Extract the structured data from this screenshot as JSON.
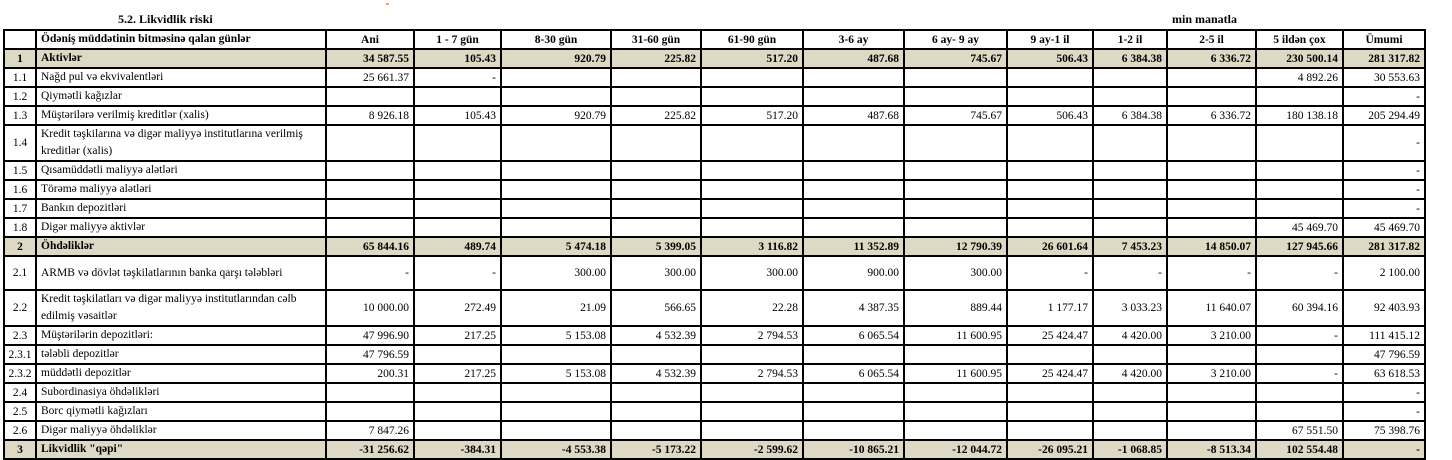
{
  "title": "5.2. Likvidlik riski",
  "unit": "min manatla",
  "columns": [
    "",
    "Ödəniş müddətinin bitməsinə qalan günlər",
    "Ani",
    "1 - 7 gün",
    "8-30 gün",
    "31-60 gün",
    "61-90 gün",
    "3-6 ay",
    "6 ay- 9 ay",
    "9 ay-1 il",
    "1-2 il",
    "2-5 il",
    "5 ildən çox",
    "Ümumi"
  ],
  "colors": {
    "summary_row_bg": "#ddd9c4",
    "border": "#000000"
  },
  "rows": [
    {
      "idx": "1",
      "label": "Aktivlər",
      "summary": true,
      "values": [
        "34 587.55",
        "105.43",
        "920.79",
        "225.82",
        "517.20",
        "487.68",
        "745.67",
        "506.43",
        "6 384.38",
        "6 336.72",
        "230 500.14",
        "281 317.82"
      ]
    },
    {
      "idx": "1.1",
      "label": "Nağd pul və ekvivalentləri",
      "values": [
        "25 661.37",
        "-",
        "",
        "",
        "",
        "",
        "",
        "",
        "",
        "",
        "4 892.26",
        "30 553.63"
      ]
    },
    {
      "idx": "1.2",
      "label": "Qiymətli kağızlar",
      "values": [
        "",
        "",
        "",
        "",
        "",
        "",
        "",
        "",
        "",
        "",
        "",
        "-"
      ]
    },
    {
      "idx": "1.3",
      "label": "Müştərilərə verilmiş kreditlər (xalis)",
      "values": [
        "8 926.18",
        "105.43",
        "920.79",
        "225.82",
        "517.20",
        "487.68",
        "745.67",
        "506.43",
        "6 384.38",
        "6 336.72",
        "180 138.18",
        "205 294.49"
      ]
    },
    {
      "idx": "1.4",
      "label": "Kredit təşkilarına və digər maliyyə institutlarına verilmiş kreditlər (xalis)",
      "tall": true,
      "values": [
        "",
        "",
        "",
        "",
        "",
        "",
        "",
        "",
        "",
        "",
        "",
        "-"
      ]
    },
    {
      "idx": "1.5",
      "label": "Qısamüddətli maliyyə alətləri",
      "values": [
        "",
        "",
        "",
        "",
        "",
        "",
        "",
        "",
        "",
        "",
        "",
        "-"
      ]
    },
    {
      "idx": "1.6",
      "label": "Törəmə maliyyə alətləri",
      "values": [
        "",
        "",
        "",
        "",
        "",
        "",
        "",
        "",
        "",
        "",
        "",
        "-"
      ]
    },
    {
      "idx": "1.7",
      "label": "Bankın depozitləri",
      "values": [
        "",
        "",
        "",
        "",
        "",
        "",
        "",
        "",
        "",
        "",
        "",
        "-"
      ]
    },
    {
      "idx": "1.8",
      "label": "Digər maliyyə aktivlər",
      "values": [
        "",
        "",
        "",
        "",
        "",
        "",
        "",
        "",
        "",
        "",
        "45 469.70",
        "45 469.70"
      ]
    },
    {
      "idx": "2",
      "label": "Öhdəliklər",
      "summary": true,
      "values": [
        "65 844.16",
        "489.74",
        "5 474.18",
        "5 399.05",
        "3 116.82",
        "11 352.89",
        "12 790.39",
        "26 601.64",
        "7 453.23",
        "14 850.07",
        "127 945.66",
        "281 317.82"
      ]
    },
    {
      "idx": "2.1",
      "label": "ARMB və dövlət təşkilatlarının banka qarşı tələbləri",
      "tall": true,
      "values": [
        "-",
        "-",
        "300.00",
        "300.00",
        "300.00",
        "900.00",
        "300.00",
        "-",
        "-",
        "-",
        "-",
        "2 100.00"
      ]
    },
    {
      "idx": "2.2",
      "label": "Kredit təşkilatları və digər maliyyə institutlarından cəlb edilmiş vəsaitlər",
      "tall2": true,
      "values": [
        "10 000.00",
        "272.49",
        "21.09",
        "566.65",
        "22.28",
        "4 387.35",
        "889.44",
        "1 177.17",
        "3 033.23",
        "11 640.07",
        "60 394.16",
        "92 403.93"
      ]
    },
    {
      "idx": "2.3",
      "label": "Müştərilərin depozitləri:",
      "values": [
        "47 996.90",
        "217.25",
        "5 153.08",
        "4 532.39",
        "2 794.53",
        "6 065.54",
        "11 600.95",
        "25 424.47",
        "4 420.00",
        "3 210.00",
        "-",
        "111 415.12"
      ]
    },
    {
      "idx": "2.3.1",
      "label": "tələbli depozitlər",
      "values": [
        "47 796.59",
        "",
        "",
        "",
        "",
        "",
        "",
        "",
        "",
        "",
        "",
        "47 796.59"
      ]
    },
    {
      "idx": "2.3.2",
      "label": "müddətli depozitlər",
      "values": [
        "200.31",
        "217.25",
        "5 153.08",
        "4 532.39",
        "2 794.53",
        "6 065.54",
        "11 600.95",
        "25 424.47",
        "4 420.00",
        "3 210.00",
        "-",
        "63 618.53"
      ]
    },
    {
      "idx": "2.4",
      "label": "Subordinasiya öhdəlikləri",
      "values": [
        "",
        "",
        "",
        "",
        "",
        "",
        "",
        "",
        "",
        "",
        "",
        "-"
      ]
    },
    {
      "idx": "2.5",
      "label": "Borc qiymətli kağızları",
      "values": [
        "",
        "",
        "",
        "",
        "",
        "",
        "",
        "",
        "",
        "",
        "",
        "-"
      ]
    },
    {
      "idx": "2.6",
      "label": "Digər maliyyə öhdəliklər",
      "values": [
        "7 847.26",
        "",
        "",
        "",
        "",
        "",
        "",
        "",
        "",
        "",
        "67 551.50",
        "75 398.76"
      ]
    },
    {
      "idx": "3",
      "label": "Likvidlik \"qəpi\"",
      "summary": true,
      "values": [
        "-31 256.62",
        "-384.31",
        "-4 553.38",
        "-5 173.22",
        "-2 599.62",
        "-10 865.21",
        "-12 044.72",
        "-26 095.21",
        "-1 068.85",
        "-8 513.34",
        "102 554.48",
        "-"
      ]
    }
  ]
}
